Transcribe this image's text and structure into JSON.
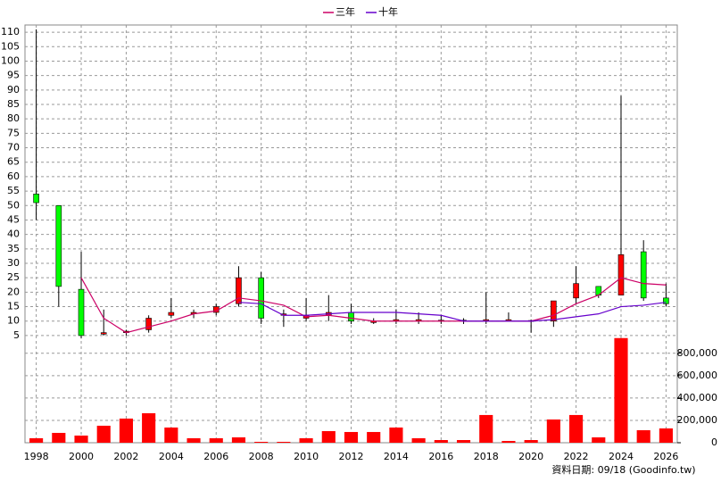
{
  "chart_data": {
    "type": "candlestick",
    "x": [
      1998,
      1999,
      2000,
      2001,
      2002,
      2003,
      2004,
      2005,
      2006,
      2007,
      2008,
      2009,
      2010,
      2011,
      2012,
      2013,
      2014,
      2015,
      2016,
      2017,
      2018,
      2019,
      2020,
      2021,
      2022,
      2023,
      2024,
      2025,
      2026
    ],
    "open": [
      54,
      50,
      21,
      5.5,
      6,
      7,
      12,
      12.5,
      13,
      16,
      25,
      12,
      11,
      12,
      13,
      9.5,
      10,
      10,
      10,
      10,
      10,
      10,
      10,
      10,
      18,
      22,
      19,
      34,
      18
    ],
    "high": [
      111,
      50,
      34,
      14,
      7,
      12,
      18,
      14,
      16,
      29,
      27,
      14,
      18,
      19,
      16,
      11,
      14,
      13,
      12,
      11,
      20,
      13,
      10.5,
      17,
      29,
      22,
      88,
      38,
      23
    ],
    "low": [
      45,
      15,
      4,
      5,
      5,
      6,
      11,
      11,
      12,
      15,
      9,
      8,
      10,
      10,
      9,
      9,
      9,
      9,
      9,
      9,
      9,
      10,
      6,
      8,
      16,
      18,
      19,
      17,
      15
    ],
    "close": [
      51,
      22,
      5,
      6,
      6.5,
      11,
      13,
      13,
      15,
      25,
      11,
      12.5,
      12,
      13,
      10,
      10,
      10.5,
      10.5,
      10.3,
      10.3,
      10.5,
      10.5,
      10.2,
      17,
      23,
      19,
      33,
      18,
      16
    ],
    "up_color": "#ff0000",
    "down_color": "#00ff00",
    "series": [
      {
        "name": "三年",
        "color": "#cc0066",
        "values": [
          null,
          null,
          25,
          11,
          6,
          8,
          10,
          12.5,
          13.5,
          18,
          17,
          15.5,
          11.5,
          12,
          11,
          10,
          10,
          10,
          10,
          10,
          10,
          10,
          10,
          12,
          16,
          19,
          25,
          23,
          22.5
        ]
      },
      {
        "name": "十年",
        "color": "#6600cc",
        "values": [
          null,
          null,
          null,
          null,
          null,
          null,
          null,
          null,
          null,
          16.5,
          16,
          12,
          12,
          12.5,
          13,
          13,
          13,
          12.5,
          12,
          10,
          10,
          10,
          10,
          10.5,
          11.5,
          12.5,
          15,
          15.5,
          16.5
        ]
      }
    ],
    "volume": {
      "color": "#ff0000",
      "values": [
        40000,
        88000,
        64000,
        152000,
        216000,
        264000,
        136000,
        40000,
        40000,
        48000,
        8000,
        8000,
        40000,
        104000,
        96000,
        96000,
        136000,
        40000,
        24000,
        24000,
        248000,
        16000,
        24000,
        208000,
        248000,
        48000,
        936000,
        112000,
        128000
      ],
      "ylim": [
        0,
        950000
      ],
      "yticks": [
        0,
        {
          "value": 200000,
          "label": "200,000"
        },
        {
          "value": 400000,
          "label": "400,000"
        },
        {
          "value": 600000,
          "label": "600,000"
        },
        {
          "value": 800000,
          "label": "800,000"
        }
      ]
    },
    "xlim": [
      1997.5,
      2026.5
    ],
    "xticks": [
      1998,
      2000,
      2002,
      2004,
      2006,
      2008,
      2010,
      2012,
      2014,
      2016,
      2018,
      2020,
      2022,
      2024,
      2026
    ],
    "ylim": [
      2.5,
      112.5
    ],
    "yticks": [
      5,
      10,
      15,
      20,
      25,
      30,
      35,
      40,
      45,
      50,
      55,
      60,
      65,
      70,
      75,
      80,
      85,
      90,
      95,
      100,
      105,
      110
    ],
    "grid": true,
    "footnote": "資料日期: 09/18 (Goodinfo.tw)"
  }
}
